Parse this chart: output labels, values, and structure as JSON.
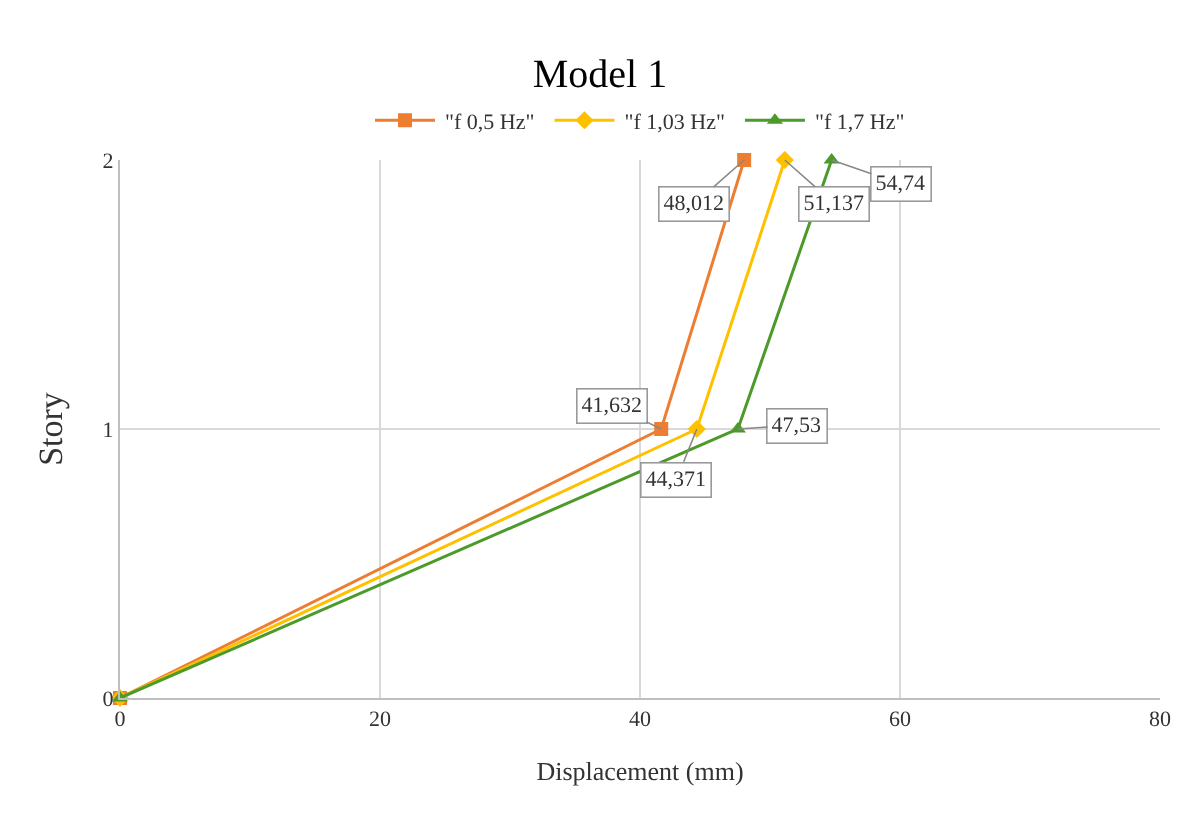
{
  "chart_data": {
    "type": "line",
    "title": "Model 1",
    "xlabel": "Displacement (mm)",
    "ylabel": "Story",
    "xlim": [
      0,
      80
    ],
    "xticks": [
      0,
      20,
      40,
      60,
      80
    ],
    "ylim": [
      0,
      2
    ],
    "yticks": [
      0,
      1,
      2
    ],
    "grid": true,
    "legend": "top",
    "line_style": "solid",
    "series": [
      {
        "name": "\"f 0,5 Hz\"",
        "color": "#ed7d31",
        "marker": "square",
        "x": [
          0,
          41.632,
          48.012
        ],
        "values": [
          0,
          1,
          2
        ]
      },
      {
        "name": "\"f 1,03 Hz\"",
        "color": "#ffc000",
        "marker": "diamond",
        "x": [
          0,
          44.371,
          51.137
        ],
        "values": [
          0,
          1,
          2
        ]
      },
      {
        "name": "\"f 1,7 Hz\"",
        "color": "#4c9a2a",
        "marker": "triangle",
        "x": [
          0,
          47.53,
          54.74
        ],
        "values": [
          0,
          1,
          2
        ]
      }
    ],
    "annotations": [
      {
        "text": "41,632",
        "x": 41.632,
        "y": 1
      },
      {
        "text": "48,012",
        "x": 48.012,
        "y": 2
      },
      {
        "text": "44,371",
        "x": 44.371,
        "y": 1
      },
      {
        "text": "51,137",
        "x": 51.137,
        "y": 2
      },
      {
        "text": "47,53",
        "x": 47.53,
        "y": 1
      },
      {
        "text": "54,74",
        "x": 54.74,
        "y": 2
      }
    ]
  }
}
